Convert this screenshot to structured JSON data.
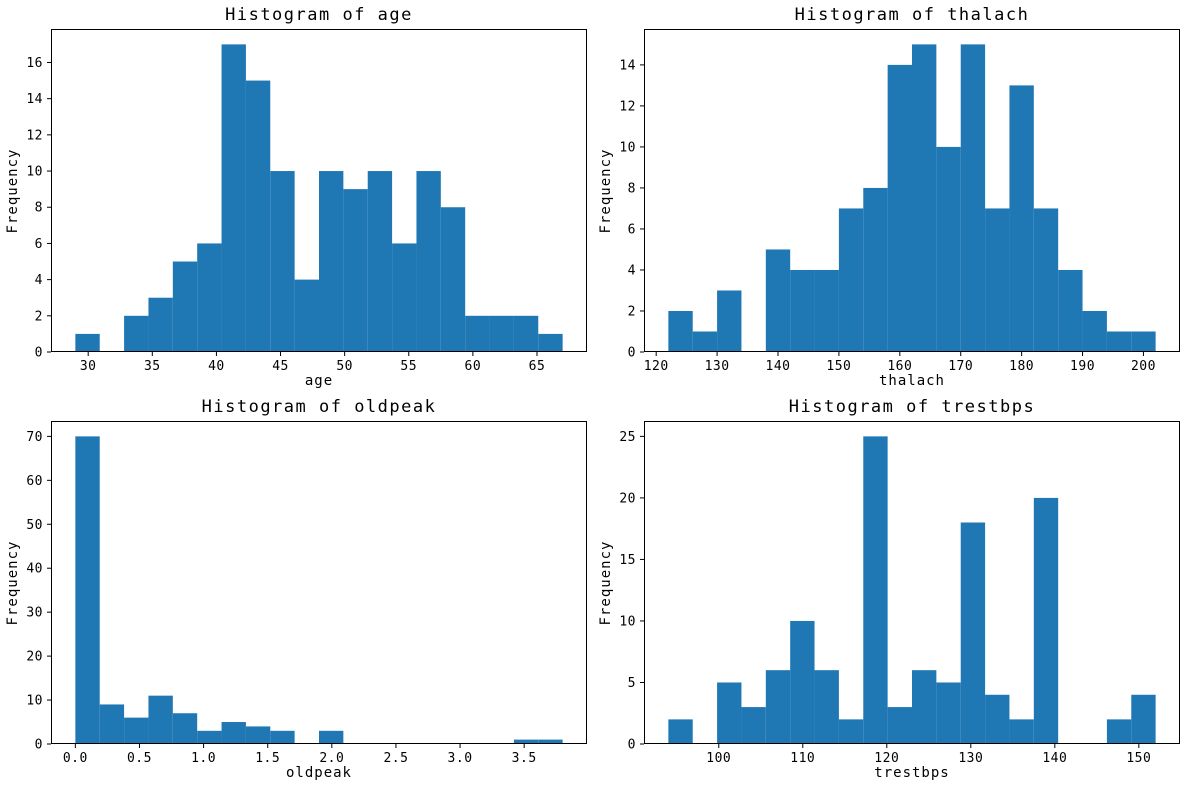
{
  "figure": {
    "background": "#ffffff",
    "bar_color": "#1f77b4",
    "axis_color": "#000000",
    "text_color": "#000000"
  },
  "chart_data": [
    {
      "type": "bar",
      "subtype": "histogram",
      "title": "Histogram of age",
      "xlabel": "age",
      "ylabel": "Frequency",
      "bin_start": 29.0,
      "bin_width": 1.9,
      "counts": [
        1,
        0,
        2,
        3,
        5,
        6,
        17,
        15,
        10,
        4,
        10,
        9,
        10,
        6,
        10,
        8,
        2,
        2,
        2,
        1
      ],
      "xlim": [
        27.1,
        68.9
      ],
      "ylim": [
        0,
        17.85
      ],
      "xticks": [
        30,
        35,
        40,
        45,
        50,
        55,
        60,
        65
      ],
      "xtick_labels": [
        "30",
        "35",
        "40",
        "45",
        "50",
        "55",
        "60",
        "65"
      ],
      "yticks": [
        0,
        2,
        4,
        6,
        8,
        10,
        12,
        14,
        16
      ],
      "ytick_labels": [
        "0",
        "2",
        "4",
        "6",
        "8",
        "10",
        "12",
        "14",
        "16"
      ],
      "grid": false,
      "legend": null
    },
    {
      "type": "bar",
      "subtype": "histogram",
      "title": "Histogram of thalach",
      "xlabel": "thalach",
      "ylabel": "Frequency",
      "bin_start": 122.0,
      "bin_width": 4.0,
      "counts": [
        2,
        1,
        3,
        0,
        5,
        4,
        4,
        7,
        8,
        14,
        15,
        10,
        15,
        7,
        13,
        7,
        4,
        2,
        1,
        1
      ],
      "xlim": [
        118.0,
        206.0
      ],
      "ylim": [
        0,
        15.75
      ],
      "xticks": [
        120,
        130,
        140,
        150,
        160,
        170,
        180,
        190,
        200
      ],
      "xtick_labels": [
        "120",
        "130",
        "140",
        "150",
        "160",
        "170",
        "180",
        "190",
        "200"
      ],
      "yticks": [
        0,
        2,
        4,
        6,
        8,
        10,
        12,
        14
      ],
      "ytick_labels": [
        "0",
        "2",
        "4",
        "6",
        "8",
        "10",
        "12",
        "14"
      ],
      "grid": false,
      "legend": null
    },
    {
      "type": "bar",
      "subtype": "histogram",
      "title": "Histogram of oldpeak",
      "xlabel": "oldpeak",
      "ylabel": "Frequency",
      "bin_start": 0.0,
      "bin_width": 0.19,
      "counts": [
        70,
        9,
        6,
        11,
        7,
        3,
        5,
        4,
        3,
        0,
        3,
        0,
        0,
        0,
        0,
        0,
        0,
        0,
        1,
        1
      ],
      "xlim": [
        -0.19,
        3.99
      ],
      "ylim": [
        0,
        73.5
      ],
      "xticks": [
        0.0,
        0.5,
        1.0,
        1.5,
        2.0,
        2.5,
        3.0,
        3.5
      ],
      "xtick_labels": [
        "0.0",
        "0.5",
        "1.0",
        "1.5",
        "2.0",
        "2.5",
        "3.0",
        "3.5"
      ],
      "yticks": [
        0,
        10,
        20,
        30,
        40,
        50,
        60,
        70
      ],
      "ytick_labels": [
        "0",
        "10",
        "20",
        "30",
        "40",
        "50",
        "60",
        "70"
      ],
      "grid": false,
      "legend": null
    },
    {
      "type": "bar",
      "subtype": "histogram",
      "title": "Histogram of trestbps",
      "xlabel": "trestbps",
      "ylabel": "Frequency",
      "bin_start": 94.0,
      "bin_width": 2.9,
      "counts": [
        2,
        0,
        5,
        3,
        6,
        10,
        6,
        2,
        25,
        3,
        6,
        5,
        18,
        4,
        2,
        20,
        0,
        0,
        2,
        4
      ],
      "xlim": [
        91.1,
        154.9
      ],
      "ylim": [
        0,
        26.25
      ],
      "xticks": [
        100,
        110,
        120,
        130,
        140,
        150
      ],
      "xtick_labels": [
        "100",
        "110",
        "120",
        "130",
        "140",
        "150"
      ],
      "yticks": [
        0,
        5,
        10,
        15,
        20,
        25
      ],
      "ytick_labels": [
        "0",
        "5",
        "10",
        "15",
        "20",
        "25"
      ],
      "grid": false,
      "legend": null
    }
  ]
}
